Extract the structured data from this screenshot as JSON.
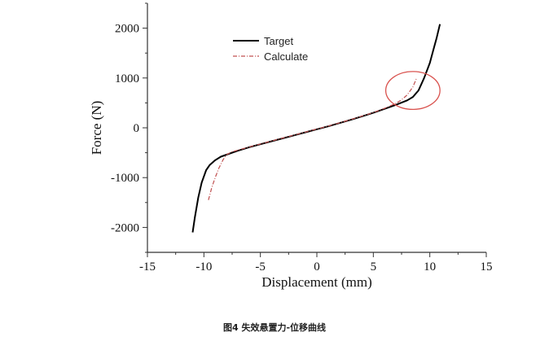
{
  "caption": "图4 失效悬置力-位移曲线",
  "chart_data": {
    "type": "line",
    "xlabel": "Displacement (mm)",
    "ylabel": "Force (N)",
    "xlim": [
      -15,
      15
    ],
    "ylim": [
      -2500,
      2500
    ],
    "xticks": [
      -15,
      -10,
      -5,
      0,
      5,
      10,
      15
    ],
    "yticks": [
      -2000,
      -1000,
      0,
      1000,
      2000
    ],
    "grid": false,
    "legend_position": "top-center",
    "series": [
      {
        "name": "Target",
        "color": "#000000",
        "style": "solid",
        "x": [
          -11.0,
          -10.8,
          -10.5,
          -10.2,
          -9.8,
          -9.5,
          -9.0,
          -8.5,
          -8.0,
          -7.0,
          -6.0,
          -5.0,
          -4.0,
          -3.0,
          -2.0,
          -1.0,
          0,
          1.0,
          2.0,
          3.0,
          4.0,
          5.0,
          6.0,
          7.0,
          8.0,
          8.5,
          9.0,
          9.5,
          10.0,
          10.3,
          10.6,
          10.9
        ],
        "y": [
          -2100,
          -1800,
          -1400,
          -1100,
          -850,
          -750,
          -650,
          -580,
          -540,
          -460,
          -390,
          -330,
          -270,
          -210,
          -150,
          -90,
          -30,
          30,
          95,
          160,
          230,
          300,
          380,
          460,
          550,
          620,
          750,
          1000,
          1300,
          1550,
          1800,
          2080
        ]
      },
      {
        "name": "Calculate",
        "color": "#c05050",
        "style": "dashdot",
        "x": [
          -9.6,
          -9.3,
          -9.0,
          -8.7,
          -8.3,
          -8.0,
          -7.5,
          -7.0,
          -6.0,
          -5.0,
          -4.0,
          -3.0,
          -2.0,
          -1.0,
          0,
          1.0,
          2.0,
          3.0,
          4.0,
          5.0,
          6.0,
          7.0,
          7.5,
          8.0,
          8.5,
          8.8
        ],
        "y": [
          -1450,
          -1200,
          -1000,
          -820,
          -640,
          -540,
          -480,
          -450,
          -385,
          -325,
          -265,
          -205,
          -145,
          -85,
          -25,
          35,
          100,
          165,
          235,
          305,
          390,
          490,
          560,
          660,
          820,
          980
        ]
      }
    ],
    "annotation": {
      "shape": "ellipse",
      "color": "#d9534f",
      "center_x": 8.5,
      "center_y": 750,
      "radius_x": 2.4,
      "radius_y": 380
    }
  }
}
